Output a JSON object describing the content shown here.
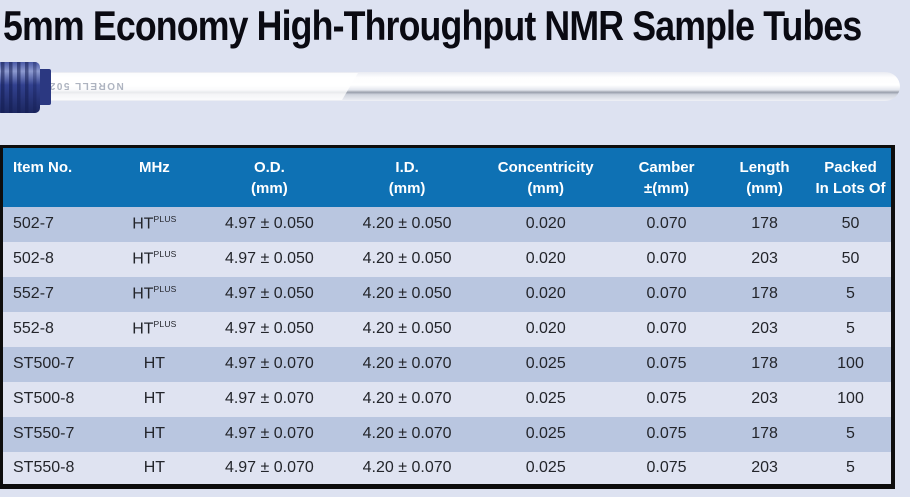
{
  "page": {
    "title": "5mm Economy High-Throughput NMR Sample Tubes",
    "background_color": "#dde2f1"
  },
  "tube_image": {
    "label": "NORELL 502",
    "cap_color": "#32418f",
    "glass_color": "#f2f3f7"
  },
  "table": {
    "header_color": "#0e71b4",
    "row_color_odd": "#b9c6e0",
    "row_color_even": "#dfe3f1",
    "border_color": "#0d0d0d",
    "columns": [
      {
        "key": "item_no",
        "line1": "Item No.",
        "line2": ""
      },
      {
        "key": "mhz",
        "line1": "MHz",
        "line2": ""
      },
      {
        "key": "od",
        "line1": "O.D.",
        "line2": "(mm)"
      },
      {
        "key": "id",
        "line1": "I.D.",
        "line2": "(mm)"
      },
      {
        "key": "concentricity",
        "line1": "Concentricity",
        "line2": "(mm)"
      },
      {
        "key": "camber",
        "line1": "Camber",
        "line2": "±(mm)"
      },
      {
        "key": "length",
        "line1": "Length",
        "line2": "(mm)"
      },
      {
        "key": "packed",
        "line1": "Packed",
        "line2": "In Lots Of"
      }
    ],
    "rows": [
      {
        "item_no": "502-7",
        "mhz": "HT",
        "mhz_sup": "PLUS",
        "od": "4.97 ± 0.050",
        "id": "4.20 ± 0.050",
        "concentricity": "0.020",
        "camber": "0.070",
        "length": "178",
        "packed": "50"
      },
      {
        "item_no": "502-8",
        "mhz": "HT",
        "mhz_sup": "PLUS",
        "od": "4.97 ± 0.050",
        "id": "4.20 ± 0.050",
        "concentricity": "0.020",
        "camber": "0.070",
        "length": "203",
        "packed": "50"
      },
      {
        "item_no": "552-7",
        "mhz": "HT",
        "mhz_sup": "PLUS",
        "od": "4.97 ± 0.050",
        "id": "4.20 ± 0.050",
        "concentricity": "0.020",
        "camber": "0.070",
        "length": "178",
        "packed": "5"
      },
      {
        "item_no": "552-8",
        "mhz": "HT",
        "mhz_sup": "PLUS",
        "od": "4.97 ± 0.050",
        "id": "4.20 ± 0.050",
        "concentricity": "0.020",
        "camber": "0.070",
        "length": "203",
        "packed": "5"
      },
      {
        "item_no": "ST500-7",
        "mhz": "HT",
        "mhz_sup": "",
        "od": "4.97 ± 0.070",
        "id": "4.20 ± 0.070",
        "concentricity": "0.025",
        "camber": "0.075",
        "length": "178",
        "packed": "100"
      },
      {
        "item_no": "ST500-8",
        "mhz": "HT",
        "mhz_sup": "",
        "od": "4.97 ± 0.070",
        "id": "4.20 ± 0.070",
        "concentricity": "0.025",
        "camber": "0.075",
        "length": "203",
        "packed": "100"
      },
      {
        "item_no": "ST550-7",
        "mhz": "HT",
        "mhz_sup": "",
        "od": "4.97 ± 0.070",
        "id": "4.20 ± 0.070",
        "concentricity": "0.025",
        "camber": "0.075",
        "length": "178",
        "packed": "5"
      },
      {
        "item_no": "ST550-8",
        "mhz": "HT",
        "mhz_sup": "",
        "od": "4.97 ± 0.070",
        "id": "4.20 ± 0.070",
        "concentricity": "0.025",
        "camber": "0.075",
        "length": "203",
        "packed": "5"
      }
    ]
  }
}
